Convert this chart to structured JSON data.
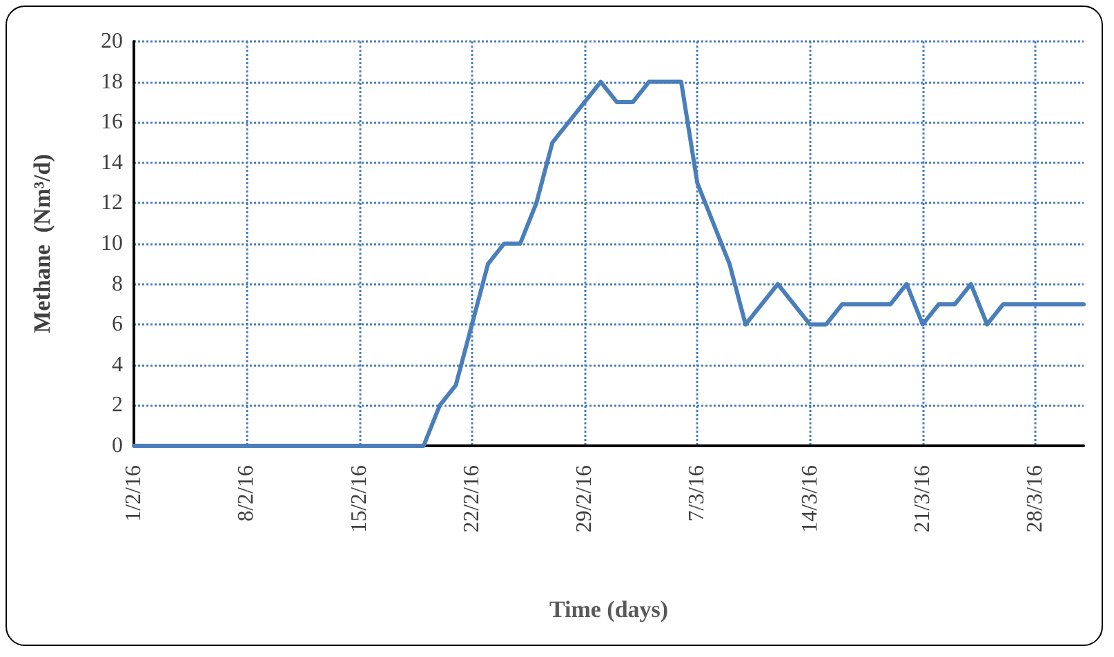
{
  "chart_data": {
    "type": "line",
    "xlabel": "Time (days)",
    "ylabel": "Methane  (Nm³/d)",
    "x": [
      "--02-01",
      "--02-19",
      "--02-20",
      "--02-21",
      "--02-23",
      "--02-24",
      "--02-25",
      "--02-26",
      "--02-27",
      "--03-01",
      "--03-02",
      "--03-03",
      "--03-04",
      "--03-06",
      "--03-07",
      "--03-09",
      "--03-10",
      "--03-12",
      "--03-14",
      "--03-15",
      "--03-16",
      "--03-19",
      "--03-20",
      "--03-21",
      "--03-22",
      "--03-23",
      "--03-24",
      "--03-25",
      "--03-26",
      "--03-31"
    ],
    "series": [
      {
        "color": "#4a7ebb",
        "values": [
          0,
          0,
          2,
          3,
          9,
          10,
          10,
          12,
          15,
          18,
          17,
          17,
          18,
          18,
          13,
          9,
          6,
          8,
          6,
          6,
          7,
          7,
          8,
          6,
          7,
          7,
          8,
          6,
          7,
          7
        ]
      }
    ],
    "xlim": [
      "--02-01",
      "--03-31"
    ],
    "xticks": [
      {
        "value": "--02-01",
        "label": "1/2/16"
      },
      {
        "value": "--02-08",
        "label": "8/2/16"
      },
      {
        "value": "--02-15",
        "label": "15/2/16"
      },
      {
        "value": "--02-22",
        "label": "22/2/16"
      },
      {
        "value": "--02-29",
        "label": "29/2/16"
      },
      {
        "value": "--03-07",
        "label": "7/3/16"
      },
      {
        "value": "--03-14",
        "label": "14/3/16"
      },
      {
        "value": "--03-21",
        "label": "21/3/16"
      },
      {
        "value": "--03-28",
        "label": "28/3/16"
      }
    ],
    "ylim": [
      0,
      20
    ],
    "yticks": [
      0,
      2,
      4,
      6,
      8,
      10,
      12,
      14,
      16,
      18,
      20
    ],
    "grid": true,
    "marker": "none",
    "line_style": "solid"
  }
}
